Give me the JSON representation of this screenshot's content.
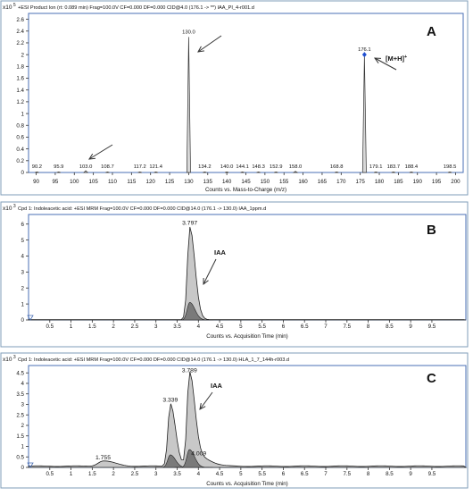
{
  "chart_data": [
    {
      "type": "bar",
      "panel_letter": "A",
      "multiplier": "x10",
      "multiplier_exp": "5",
      "title": "+ESI Product Ion (rt: 0.089 min) Frag=100.0V CF=0.000 DF=0.000 CID@4.0 (176.1 -> **) IAA_PI_4-r001.d",
      "xlabel": "Counts vs. Mass-to-Charge (m/z)",
      "xlim": [
        88,
        202
      ],
      "ylim": [
        0,
        2.7
      ],
      "x_ticks": [
        "90",
        "95",
        "100",
        "105",
        "110",
        "115",
        "120",
        "125",
        "130",
        "135",
        "140",
        "145",
        "150",
        "155",
        "160",
        "165",
        "170",
        "175",
        "180",
        "185",
        "190",
        "195",
        "200"
      ],
      "y_ticks": [
        "0",
        "0.2",
        "0.4",
        "0.6",
        "0.8",
        "1",
        "1.2",
        "1.4",
        "1.6",
        "1.8",
        "2",
        "2.2",
        "2.4",
        "2.6"
      ],
      "peaks": [
        {
          "mz": 90.2,
          "label": "90.2",
          "intensity": 0.01
        },
        {
          "mz": 95.9,
          "label": "95.9",
          "intensity": 0.01
        },
        {
          "mz": 103.0,
          "label": "103.0",
          "intensity": 0.03
        },
        {
          "mz": 108.7,
          "label": "108.7",
          "intensity": 0.01
        },
        {
          "mz": 117.2,
          "label": "117.2",
          "intensity": 0.01
        },
        {
          "mz": 121.4,
          "label": "121.4",
          "intensity": 0.01
        },
        {
          "mz": 130.0,
          "label": "130.0",
          "intensity": 2.3
        },
        {
          "mz": 134.2,
          "label": "134.2",
          "intensity": 0.01
        },
        {
          "mz": 140.0,
          "label": "140.0",
          "intensity": 0.01
        },
        {
          "mz": 144.1,
          "label": "144.1",
          "intensity": 0.01
        },
        {
          "mz": 148.3,
          "label": "148.3",
          "intensity": 0.01
        },
        {
          "mz": 152.9,
          "label": "152.9",
          "intensity": 0.01
        },
        {
          "mz": 158.0,
          "label": "158.0",
          "intensity": 0.02
        },
        {
          "mz": 168.8,
          "label": "168.8",
          "intensity": 0.01
        },
        {
          "mz": 176.1,
          "label": "176.1",
          "intensity": 2.0
        },
        {
          "mz": 179.1,
          "label": "179.1",
          "intensity": 0.01
        },
        {
          "mz": 183.7,
          "label": "183.7",
          "intensity": 0.01
        },
        {
          "mz": 188.4,
          "label": "188.4",
          "intensity": 0.01
        },
        {
          "mz": 198.5,
          "label": "198.5",
          "intensity": 0.01
        }
      ],
      "annotations": [
        {
          "text": "[M+H]",
          "sup": "+"
        }
      ]
    },
    {
      "type": "area",
      "panel_letter": "B",
      "multiplier": "x10",
      "multiplier_exp": "3",
      "title": "Cpd 1: Indoleacetic acid: +ESI MRM Frag=100.0V CF=0.000 DF=0.000 CID@14.0 (176.1 -> 130.0) IAA_1ppm.d",
      "xlabel": "Counts vs. Acquisition Time (min)",
      "xlim": [
        0,
        10.3
      ],
      "ylim": [
        0,
        6.6
      ],
      "x_ticks": [
        "0.5",
        "1",
        "1.5",
        "2",
        "2.5",
        "3",
        "3.5",
        "4",
        "4.5",
        "5",
        "5.5",
        "6",
        "6.5",
        "7",
        "7.5",
        "8",
        "8.5",
        "9",
        "9.5"
      ],
      "y_ticks": [
        "0",
        "1",
        "2",
        "3",
        "4",
        "5",
        "6"
      ],
      "peaks": [
        {
          "rt": 3.797,
          "label": "3.797",
          "height": 5.8,
          "inner_height": 1.1
        }
      ],
      "annotations": [
        {
          "text": "IAA"
        }
      ]
    },
    {
      "type": "area",
      "panel_letter": "C",
      "multiplier": "x10",
      "multiplier_exp": "3",
      "title": "Cpd 1: Indoleacetic acid: +ESI MRM Frag=100.0V CF=0.000 DF=0.000 CID@14.0 (176.1 -> 130.0) HLA_1_7_144h-r003.d",
      "xlabel": "Counts vs. Acquisition Time (min)",
      "xlim": [
        0,
        10.3
      ],
      "ylim": [
        0,
        4.85
      ],
      "x_ticks": [
        "0.5",
        "1",
        "1.5",
        "2",
        "2.5",
        "3",
        "3.5",
        "4",
        "4.5",
        "5",
        "5.5",
        "6",
        "6.5",
        "7",
        "7.5",
        "8",
        "8.5",
        "9",
        "9.5"
      ],
      "y_ticks": [
        "0",
        "0.5",
        "1",
        "1.5",
        "2",
        "2.5",
        "3",
        "3.5",
        "4",
        "4.5"
      ],
      "peaks": [
        {
          "rt": 1.755,
          "label": "1.755",
          "height": 0.25,
          "inner_height": 0.0
        },
        {
          "rt": 3.339,
          "label": "3.339",
          "height": 3.0,
          "inner_height": 0.6
        },
        {
          "rt": 3.789,
          "label": "3.789",
          "height": 4.4,
          "inner_height": 0.85
        },
        {
          "rt": 4.009,
          "label": "4.009",
          "height": 0.45,
          "inner_height": 0.0
        }
      ],
      "annotations": [
        {
          "text": "IAA"
        }
      ]
    }
  ]
}
